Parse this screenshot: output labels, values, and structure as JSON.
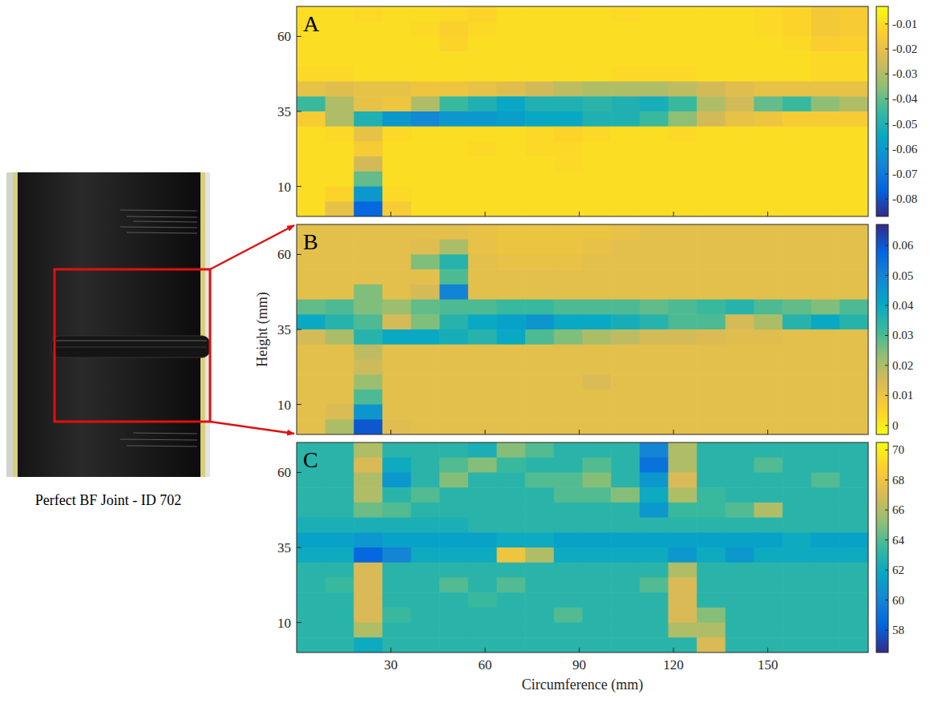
{
  "photo": {
    "caption": "Perfect BF Joint - ID 702"
  },
  "chart_data": [
    {
      "type": "heatmap",
      "title": "A",
      "xlim": [
        0,
        182
      ],
      "xticks": [
        30,
        60,
        90,
        120,
        150
      ],
      "ylim": [
        0,
        70
      ],
      "yticks": [
        10,
        35,
        60
      ],
      "tick_labels": "y",
      "colorbar": {
        "range": [
          -0.087,
          -0.003
        ],
        "ticks": [
          -0.08,
          -0.07,
          -0.06,
          -0.05,
          -0.04,
          -0.03,
          -0.02,
          -0.01
        ],
        "colors": [
          "#352a87",
          "#0363e1",
          "#1485d4",
          "#06a7c6",
          "#38b99e",
          "#92bf73",
          "#d9ba56",
          "#fcce2e",
          "#f9fb0e"
        ]
      },
      "cells": [
        [
          -0.01,
          -0.01,
          -0.011,
          -0.01,
          -0.01,
          -0.011,
          -0.012,
          -0.01,
          -0.01,
          -0.01,
          -0.01,
          -0.011,
          -0.01,
          -0.01,
          -0.01,
          -0.01,
          -0.011,
          -0.012,
          -0.016,
          -0.015
        ],
        [
          -0.01,
          -0.01,
          -0.01,
          -0.01,
          -0.011,
          -0.013,
          -0.011,
          -0.01,
          -0.01,
          -0.01,
          -0.01,
          -0.01,
          -0.01,
          -0.01,
          -0.01,
          -0.01,
          -0.011,
          -0.012,
          -0.016,
          -0.015
        ],
        [
          -0.01,
          -0.01,
          -0.01,
          -0.01,
          -0.01,
          -0.012,
          -0.01,
          -0.01,
          -0.01,
          -0.01,
          -0.01,
          -0.01,
          -0.01,
          -0.01,
          -0.01,
          -0.01,
          -0.01,
          -0.011,
          -0.014,
          -0.013
        ],
        [
          -0.01,
          -0.01,
          -0.01,
          -0.01,
          -0.01,
          -0.01,
          -0.01,
          -0.01,
          -0.01,
          -0.01,
          -0.01,
          -0.01,
          -0.01,
          -0.01,
          -0.01,
          -0.01,
          -0.01,
          -0.01,
          -0.011,
          -0.011
        ],
        [
          -0.011,
          -0.011,
          -0.01,
          -0.01,
          -0.01,
          -0.01,
          -0.01,
          -0.01,
          -0.01,
          -0.01,
          -0.01,
          -0.011,
          -0.011,
          -0.011,
          -0.01,
          -0.01,
          -0.01,
          -0.01,
          -0.011,
          -0.011
        ],
        [
          -0.02,
          -0.022,
          -0.02,
          -0.02,
          -0.018,
          -0.018,
          -0.02,
          -0.022,
          -0.025,
          -0.028,
          -0.03,
          -0.03,
          -0.03,
          -0.028,
          -0.025,
          -0.022,
          -0.02,
          -0.02,
          -0.02,
          -0.02
        ],
        [
          -0.045,
          -0.03,
          -0.02,
          -0.018,
          -0.03,
          -0.045,
          -0.05,
          -0.055,
          -0.05,
          -0.05,
          -0.048,
          -0.05,
          -0.052,
          -0.045,
          -0.03,
          -0.025,
          -0.04,
          -0.045,
          -0.035,
          -0.03
        ],
        [
          -0.015,
          -0.03,
          -0.05,
          -0.06,
          -0.065,
          -0.06,
          -0.06,
          -0.058,
          -0.055,
          -0.055,
          -0.05,
          -0.05,
          -0.045,
          -0.035,
          -0.025,
          -0.02,
          -0.018,
          -0.015,
          -0.015,
          -0.015
        ],
        [
          -0.01,
          -0.011,
          -0.02,
          -0.011,
          -0.01,
          -0.01,
          -0.01,
          -0.01,
          -0.011,
          -0.012,
          -0.011,
          -0.01,
          -0.01,
          -0.011,
          -0.01,
          -0.01,
          -0.01,
          -0.01,
          -0.01,
          -0.01
        ],
        [
          -0.01,
          -0.01,
          -0.015,
          -0.01,
          -0.01,
          -0.01,
          -0.011,
          -0.01,
          -0.011,
          -0.011,
          -0.01,
          -0.01,
          -0.01,
          -0.01,
          -0.01,
          -0.01,
          -0.01,
          -0.01,
          -0.01,
          -0.01
        ],
        [
          -0.01,
          -0.01,
          -0.025,
          -0.01,
          -0.01,
          -0.01,
          -0.01,
          -0.01,
          -0.01,
          -0.011,
          -0.01,
          -0.01,
          -0.01,
          -0.01,
          -0.01,
          -0.01,
          -0.01,
          -0.01,
          -0.01,
          -0.01
        ],
        [
          -0.01,
          -0.01,
          -0.04,
          -0.01,
          -0.01,
          -0.01,
          -0.01,
          -0.01,
          -0.01,
          -0.01,
          -0.01,
          -0.01,
          -0.01,
          -0.01,
          -0.01,
          -0.01,
          -0.01,
          -0.01,
          -0.01,
          -0.01
        ],
        [
          -0.01,
          -0.012,
          -0.06,
          -0.011,
          -0.01,
          -0.01,
          -0.01,
          -0.01,
          -0.01,
          -0.01,
          -0.01,
          -0.01,
          -0.01,
          -0.01,
          -0.01,
          -0.01,
          -0.01,
          -0.01,
          -0.01,
          -0.01
        ],
        [
          -0.01,
          -0.02,
          -0.075,
          -0.015,
          -0.01,
          -0.01,
          -0.01,
          -0.01,
          -0.01,
          -0.01,
          -0.01,
          -0.01,
          -0.01,
          -0.01,
          -0.01,
          -0.01,
          -0.01,
          -0.01,
          -0.01,
          -0.01
        ]
      ]
    },
    {
      "type": "heatmap",
      "title": "B",
      "xlim": [
        0,
        182
      ],
      "xticks": [
        30,
        60,
        90,
        120,
        150
      ],
      "ylim": [
        0,
        70
      ],
      "yticks": [
        10,
        35,
        60
      ],
      "tick_labels": "y",
      "ylabel": "Height (mm)",
      "colorbar": {
        "range": [
          -0.003,
          0.067
        ],
        "ticks": [
          0,
          0.01,
          0.02,
          0.03,
          0.04,
          0.05,
          0.06
        ],
        "colors": [
          "#f9fb0e",
          "#fcce2e",
          "#d9ba56",
          "#92bf73",
          "#38b99e",
          "#06a7c6",
          "#1485d4",
          "#0363e1",
          "#352a87"
        ]
      },
      "cells": [
        [
          0.012,
          0.012,
          0.012,
          0.012,
          0.012,
          0.012,
          0.011,
          0.01,
          0.01,
          0.01,
          0.01,
          0.011,
          0.012,
          0.012,
          0.012,
          0.012,
          0.012,
          0.012,
          0.012,
          0.012
        ],
        [
          0.012,
          0.012,
          0.012,
          0.012,
          0.013,
          0.02,
          0.011,
          0.01,
          0.01,
          0.01,
          0.011,
          0.012,
          0.012,
          0.012,
          0.012,
          0.012,
          0.012,
          0.012,
          0.012,
          0.012
        ],
        [
          0.012,
          0.012,
          0.012,
          0.012,
          0.025,
          0.035,
          0.012,
          0.011,
          0.011,
          0.011,
          0.012,
          0.012,
          0.012,
          0.012,
          0.012,
          0.012,
          0.012,
          0.012,
          0.012,
          0.012
        ],
        [
          0.012,
          0.012,
          0.012,
          0.012,
          0.012,
          0.03,
          0.012,
          0.012,
          0.012,
          0.012,
          0.012,
          0.012,
          0.012,
          0.012,
          0.012,
          0.012,
          0.012,
          0.012,
          0.012,
          0.012
        ],
        [
          0.012,
          0.012,
          0.025,
          0.012,
          0.015,
          0.05,
          0.012,
          0.012,
          0.012,
          0.012,
          0.012,
          0.012,
          0.012,
          0.012,
          0.012,
          0.012,
          0.012,
          0.012,
          0.012,
          0.012
        ],
        [
          0.028,
          0.03,
          0.025,
          0.022,
          0.028,
          0.03,
          0.03,
          0.032,
          0.032,
          0.03,
          0.03,
          0.03,
          0.028,
          0.03,
          0.032,
          0.035,
          0.03,
          0.028,
          0.025,
          0.03
        ],
        [
          0.04,
          0.035,
          0.03,
          0.015,
          0.025,
          0.035,
          0.04,
          0.042,
          0.045,
          0.04,
          0.04,
          0.038,
          0.035,
          0.03,
          0.03,
          0.015,
          0.02,
          0.035,
          0.04,
          0.035
        ],
        [
          0.015,
          0.02,
          0.035,
          0.04,
          0.04,
          0.038,
          0.035,
          0.04,
          0.03,
          0.025,
          0.02,
          0.018,
          0.015,
          0.015,
          0.014,
          0.013,
          0.013,
          0.012,
          0.012,
          0.012
        ],
        [
          0.012,
          0.012,
          0.018,
          0.012,
          0.012,
          0.012,
          0.012,
          0.012,
          0.012,
          0.012,
          0.012,
          0.012,
          0.012,
          0.012,
          0.012,
          0.012,
          0.012,
          0.012,
          0.012,
          0.012
        ],
        [
          0.012,
          0.012,
          0.016,
          0.012,
          0.012,
          0.012,
          0.012,
          0.012,
          0.012,
          0.012,
          0.012,
          0.012,
          0.012,
          0.012,
          0.012,
          0.012,
          0.012,
          0.012,
          0.012,
          0.012
        ],
        [
          0.012,
          0.012,
          0.022,
          0.012,
          0.012,
          0.012,
          0.012,
          0.012,
          0.012,
          0.012,
          0.014,
          0.012,
          0.012,
          0.012,
          0.012,
          0.012,
          0.012,
          0.012,
          0.012,
          0.012
        ],
        [
          0.012,
          0.012,
          0.03,
          0.012,
          0.012,
          0.012,
          0.012,
          0.012,
          0.012,
          0.012,
          0.012,
          0.012,
          0.012,
          0.012,
          0.012,
          0.012,
          0.012,
          0.012,
          0.012,
          0.012
        ],
        [
          0.012,
          0.014,
          0.045,
          0.012,
          0.012,
          0.012,
          0.012,
          0.012,
          0.012,
          0.012,
          0.012,
          0.012,
          0.012,
          0.012,
          0.012,
          0.012,
          0.012,
          0.012,
          0.012,
          0.012
        ],
        [
          0.012,
          0.02,
          0.06,
          0.013,
          0.012,
          0.012,
          0.012,
          0.012,
          0.012,
          0.012,
          0.012,
          0.012,
          0.012,
          0.012,
          0.012,
          0.012,
          0.012,
          0.012,
          0.012,
          0.012
        ]
      ]
    },
    {
      "type": "heatmap",
      "title": "C",
      "xlim": [
        0,
        182
      ],
      "xticks": [
        30,
        60,
        90,
        120,
        150
      ],
      "ylim": [
        0,
        70
      ],
      "yticks": [
        10,
        35,
        60
      ],
      "xlabel": "Circumference (mm)",
      "colorbar": {
        "range": [
          56.5,
          70.5
        ],
        "ticks": [
          58,
          60,
          62,
          64,
          66,
          68,
          70
        ],
        "colors": [
          "#352a87",
          "#0363e1",
          "#1485d4",
          "#06a7c6",
          "#38b99e",
          "#92bf73",
          "#d9ba56",
          "#fcce2e",
          "#f9fb0e"
        ]
      },
      "cells": [
        [
          63,
          63,
          66,
          63,
          63,
          63,
          62.5,
          65,
          64,
          63,
          63,
          63,
          60,
          66,
          63,
          63,
          63,
          63,
          63,
          63
        ],
        [
          63,
          63,
          67,
          62,
          63,
          64,
          65,
          63.5,
          63,
          63,
          64,
          63,
          59,
          66,
          63,
          63,
          64,
          63,
          63,
          63
        ],
        [
          63,
          63,
          66,
          61,
          63,
          65,
          63,
          63,
          64,
          64,
          65,
          63,
          61,
          67,
          63,
          63,
          63,
          63,
          64,
          63
        ],
        [
          63,
          63,
          66,
          63,
          64,
          63,
          63,
          63,
          63,
          64,
          64,
          65,
          62,
          66,
          63.5,
          63,
          63,
          63,
          63,
          63
        ],
        [
          63,
          63,
          64.5,
          64,
          63,
          63,
          63,
          63,
          63,
          63,
          63,
          63,
          61,
          63.5,
          63.5,
          64,
          66,
          63,
          63,
          63
        ],
        [
          62.5,
          62.5,
          62.5,
          62.5,
          62.5,
          62.5,
          63,
          63,
          63,
          63,
          63,
          63,
          63,
          63,
          63,
          63,
          63,
          63,
          63,
          63
        ],
        [
          61.5,
          61.5,
          61,
          61.5,
          61.5,
          61.5,
          61.5,
          62,
          62,
          61.5,
          61.5,
          61.5,
          61.5,
          61.5,
          61.5,
          61.5,
          61.5,
          62,
          61.5,
          61.5
        ],
        [
          62,
          62,
          58.5,
          60,
          62,
          62,
          62,
          68,
          66,
          62,
          62,
          62,
          62,
          61,
          62,
          61,
          62,
          62,
          62,
          62
        ],
        [
          63,
          63,
          67,
          63,
          63,
          63,
          63,
          63,
          63,
          63,
          63,
          63,
          63,
          66,
          63,
          63,
          63,
          63,
          63,
          63
        ],
        [
          63,
          63.5,
          67,
          63,
          63,
          64,
          63,
          64,
          63,
          63,
          63,
          63,
          64,
          67,
          63,
          63,
          63,
          63,
          63,
          63
        ],
        [
          63,
          63,
          67,
          63,
          63,
          63,
          63.5,
          63,
          63,
          63,
          63,
          63,
          63,
          67,
          63,
          63,
          63,
          63,
          63,
          63
        ],
        [
          63,
          63,
          67,
          63.5,
          63,
          63,
          63,
          63,
          63,
          64,
          63,
          63,
          63,
          67,
          65,
          63,
          63,
          63,
          63,
          63
        ],
        [
          63,
          63,
          66,
          63,
          63,
          63,
          63,
          63,
          63,
          63,
          63,
          63,
          63,
          66,
          66,
          63,
          63,
          63,
          63,
          63
        ],
        [
          63,
          63,
          62,
          63,
          63,
          63,
          63,
          63,
          63,
          63,
          63,
          63,
          63,
          63,
          67,
          63,
          63,
          63,
          63,
          63
        ]
      ]
    }
  ]
}
